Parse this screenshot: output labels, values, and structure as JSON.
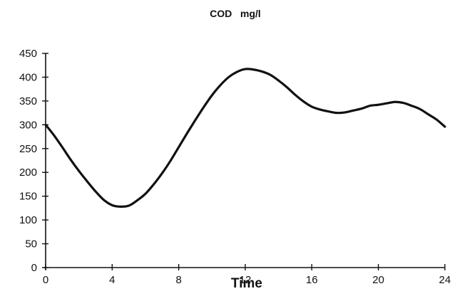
{
  "chart_data": {
    "type": "line",
    "title": "COD   mg/l",
    "xlabel": "Time",
    "ylabel": "",
    "xlim": [
      0,
      24
    ],
    "ylim": [
      0,
      450
    ],
    "x_ticks": [
      0,
      4,
      8,
      12,
      16,
      20,
      24
    ],
    "y_ticks": [
      0,
      50,
      100,
      150,
      200,
      250,
      300,
      350,
      400,
      450
    ],
    "grid": false,
    "legend": "none",
    "series": [
      {
        "x": [
          0,
          0.5,
          1,
          1.5,
          2,
          2.5,
          3,
          3.5,
          4,
          4.5,
          5,
          5.5,
          6,
          6.5,
          7,
          7.5,
          8,
          8.5,
          9,
          9.5,
          10,
          10.5,
          11,
          11.5,
          12,
          12.5,
          13,
          13.5,
          14,
          14.5,
          15,
          15.5,
          16,
          16.5,
          17,
          17.5,
          18,
          18.5,
          19,
          19.5,
          20,
          20.5,
          21,
          21.5,
          22,
          22.5,
          23,
          23.5,
          24
        ],
        "y": [
          300,
          278,
          253,
          227,
          203,
          181,
          160,
          142,
          131,
          128,
          130,
          141,
          155,
          175,
          198,
          224,
          253,
          282,
          310,
          337,
          362,
          383,
          400,
          411,
          417,
          416,
          412,
          405,
          393,
          379,
          363,
          349,
          338,
          332,
          328,
          325,
          326,
          330,
          334,
          340,
          342,
          345,
          348,
          346,
          340,
          333,
          322,
          311,
          296
        ]
      }
    ]
  }
}
